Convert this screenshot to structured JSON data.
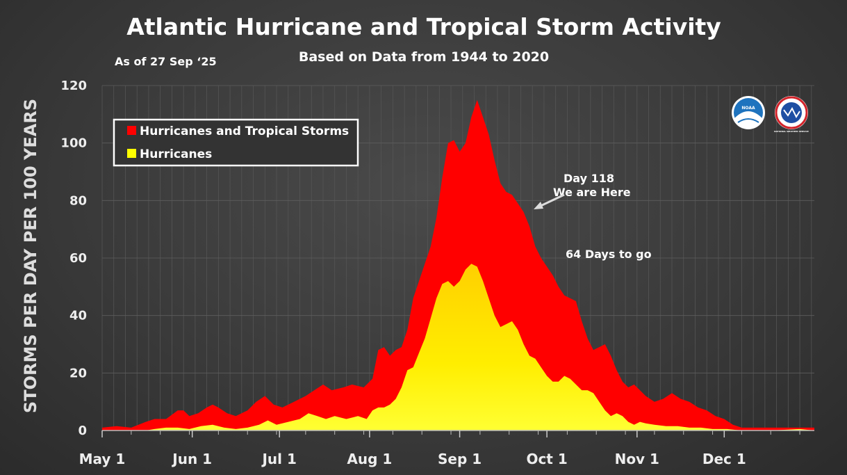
{
  "chart_data": {
    "type": "area",
    "title": "Atlantic Hurricane and Tropical Storm Activity",
    "subtitle": "Based on Data from 1944 to 2020",
    "as_of": "As of 27 Sep ‘25",
    "ylabel": "STORMS PER DAY PER 100 YEARS",
    "xlabel": "",
    "ylim": [
      0,
      120
    ],
    "yticks": [
      "0",
      "20",
      "40",
      "60",
      "80",
      "100",
      "120"
    ],
    "xticks": [
      {
        "label": "May 1",
        "day": 0
      },
      {
        "label": "Jun 1",
        "day": 31
      },
      {
        "label": "Jul 1",
        "day": 61
      },
      {
        "label": "Aug 1",
        "day": 92
      },
      {
        "label": "Sep 1",
        "day": 123
      },
      {
        "label": "Oct 1",
        "day": 153
      },
      {
        "label": "Nov 1",
        "day": 184
      },
      {
        "label": "Dec 1",
        "day": 214
      }
    ],
    "xlim": [
      0,
      245
    ],
    "grid": true,
    "legend": "top-left",
    "series": [
      {
        "name": "Hurricanes and Tropical Storms",
        "color": "#ff0000",
        "points": [
          [
            0,
            1
          ],
          [
            5,
            1.5
          ],
          [
            10,
            1
          ],
          [
            15,
            3
          ],
          [
            18,
            4
          ],
          [
            22,
            4
          ],
          [
            26,
            7
          ],
          [
            28,
            7
          ],
          [
            30,
            5
          ],
          [
            33,
            6
          ],
          [
            36,
            8
          ],
          [
            38,
            9
          ],
          [
            40,
            8
          ],
          [
            43,
            6
          ],
          [
            46,
            5
          ],
          [
            50,
            7
          ],
          [
            53,
            10
          ],
          [
            56,
            12
          ],
          [
            59,
            9
          ],
          [
            62,
            8
          ],
          [
            66,
            10
          ],
          [
            70,
            12
          ],
          [
            73,
            14
          ],
          [
            76,
            16
          ],
          [
            79,
            14
          ],
          [
            83,
            15
          ],
          [
            86,
            16
          ],
          [
            90,
            15
          ],
          [
            93,
            18
          ],
          [
            95,
            28
          ],
          [
            97,
            29
          ],
          [
            99,
            26
          ],
          [
            101,
            28
          ],
          [
            103,
            29
          ],
          [
            105,
            35
          ],
          [
            107,
            46
          ],
          [
            109,
            52
          ],
          [
            111,
            58
          ],
          [
            113,
            64
          ],
          [
            115,
            74
          ],
          [
            117,
            88
          ],
          [
            119,
            100
          ],
          [
            121,
            101
          ],
          [
            123,
            97
          ],
          [
            125,
            100
          ],
          [
            127,
            109
          ],
          [
            129,
            115
          ],
          [
            131,
            109
          ],
          [
            133,
            103
          ],
          [
            135,
            94
          ],
          [
            137,
            86
          ],
          [
            139,
            83
          ],
          [
            141,
            82
          ],
          [
            143,
            79
          ],
          [
            145,
            76
          ],
          [
            147,
            71
          ],
          [
            149,
            64
          ],
          [
            151,
            60
          ],
          [
            153,
            57
          ],
          [
            155,
            54
          ],
          [
            157,
            50
          ],
          [
            159,
            47
          ],
          [
            161,
            46
          ],
          [
            163,
            45
          ],
          [
            165,
            38
          ],
          [
            167,
            32
          ],
          [
            169,
            28
          ],
          [
            171,
            29
          ],
          [
            173,
            30
          ],
          [
            175,
            26
          ],
          [
            177,
            21
          ],
          [
            179,
            17
          ],
          [
            181,
            15
          ],
          [
            183,
            16
          ],
          [
            185,
            14
          ],
          [
            187,
            12
          ],
          [
            190,
            10
          ],
          [
            193,
            11
          ],
          [
            196,
            13
          ],
          [
            199,
            11
          ],
          [
            202,
            10
          ],
          [
            205,
            8
          ],
          [
            208,
            7
          ],
          [
            211,
            5
          ],
          [
            214,
            4
          ],
          [
            217,
            2
          ],
          [
            220,
            1
          ],
          [
            225,
            1
          ],
          [
            230,
            1
          ],
          [
            235,
            1
          ],
          [
            240,
            1
          ],
          [
            245,
            1
          ]
        ]
      },
      {
        "name": "Hurricanes",
        "color": "#ffff00",
        "points": [
          [
            0,
            0
          ],
          [
            15,
            0
          ],
          [
            18,
            0.5
          ],
          [
            22,
            1
          ],
          [
            26,
            1
          ],
          [
            30,
            0.5
          ],
          [
            34,
            1.5
          ],
          [
            38,
            2
          ],
          [
            42,
            1
          ],
          [
            46,
            0.5
          ],
          [
            50,
            1
          ],
          [
            54,
            2
          ],
          [
            57,
            3.5
          ],
          [
            60,
            2
          ],
          [
            64,
            3
          ],
          [
            68,
            4
          ],
          [
            71,
            6
          ],
          [
            74,
            5
          ],
          [
            77,
            4
          ],
          [
            80,
            5
          ],
          [
            84,
            4
          ],
          [
            88,
            5
          ],
          [
            91,
            4
          ],
          [
            93,
            7
          ],
          [
            95,
            8
          ],
          [
            97,
            8
          ],
          [
            99,
            9
          ],
          [
            101,
            11
          ],
          [
            103,
            15
          ],
          [
            105,
            21
          ],
          [
            107,
            22
          ],
          [
            109,
            27
          ],
          [
            111,
            32
          ],
          [
            113,
            39
          ],
          [
            115,
            46
          ],
          [
            117,
            51
          ],
          [
            119,
            52
          ],
          [
            121,
            50
          ],
          [
            123,
            52
          ],
          [
            125,
            56
          ],
          [
            127,
            58
          ],
          [
            129,
            57
          ],
          [
            131,
            52
          ],
          [
            133,
            46
          ],
          [
            135,
            40
          ],
          [
            137,
            36
          ],
          [
            139,
            37
          ],
          [
            141,
            38
          ],
          [
            143,
            35
          ],
          [
            145,
            30
          ],
          [
            147,
            26
          ],
          [
            149,
            25
          ],
          [
            151,
            22
          ],
          [
            153,
            19
          ],
          [
            155,
            17
          ],
          [
            157,
            17
          ],
          [
            159,
            19
          ],
          [
            161,
            18
          ],
          [
            163,
            16
          ],
          [
            165,
            14
          ],
          [
            167,
            14
          ],
          [
            169,
            13
          ],
          [
            171,
            10
          ],
          [
            173,
            7
          ],
          [
            175,
            5
          ],
          [
            177,
            6
          ],
          [
            179,
            5
          ],
          [
            181,
            3
          ],
          [
            183,
            2
          ],
          [
            185,
            3
          ],
          [
            187,
            2.5
          ],
          [
            190,
            2
          ],
          [
            194,
            1.5
          ],
          [
            198,
            1.5
          ],
          [
            202,
            1
          ],
          [
            206,
            1
          ],
          [
            210,
            0.5
          ],
          [
            215,
            0.5
          ],
          [
            220,
            0
          ],
          [
            230,
            0
          ],
          [
            240,
            0.5
          ],
          [
            245,
            0
          ]
        ]
      }
    ],
    "annotations": [
      {
        "text": "Day 118",
        "day": 118
      },
      {
        "text": "We are Here",
        "day": 118
      },
      {
        "text": "64 Days to go"
      }
    ]
  },
  "logos": [
    {
      "name": "noaa-logo",
      "text": "NOAA"
    },
    {
      "name": "nws-logo",
      "text": "NATIONAL WEATHER SERVICE"
    }
  ]
}
